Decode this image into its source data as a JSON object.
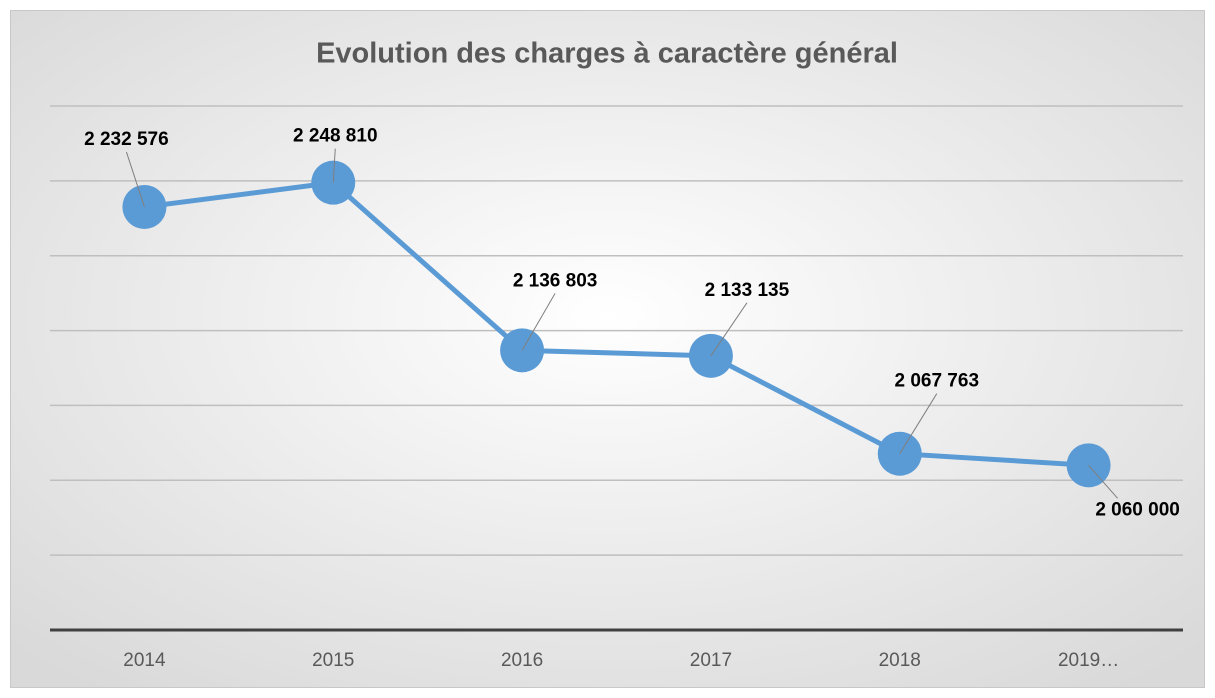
{
  "chart_data": {
    "type": "line",
    "title": "Evolution des charges à caractère général",
    "categories": [
      "2014",
      "2015",
      "2016",
      "2017",
      "2018",
      "2019…"
    ],
    "series": [
      {
        "color": "#5b9bd5",
        "values": [
          2232576,
          2248810,
          2136803,
          2133135,
          2067763,
          2060000
        ],
        "value_labels": [
          "2 232 576",
          "2 248 810",
          "2 136 803",
          "2 133 135",
          "2 067 763",
          "2 060 000"
        ]
      }
    ],
    "ylim": [
      1950000,
      2300000
    ],
    "yticks": [
      1950000,
      2000000,
      2050000,
      2100000,
      2150000,
      2200000,
      2250000,
      2300000
    ],
    "ytick_labels": false,
    "grid": true
  }
}
